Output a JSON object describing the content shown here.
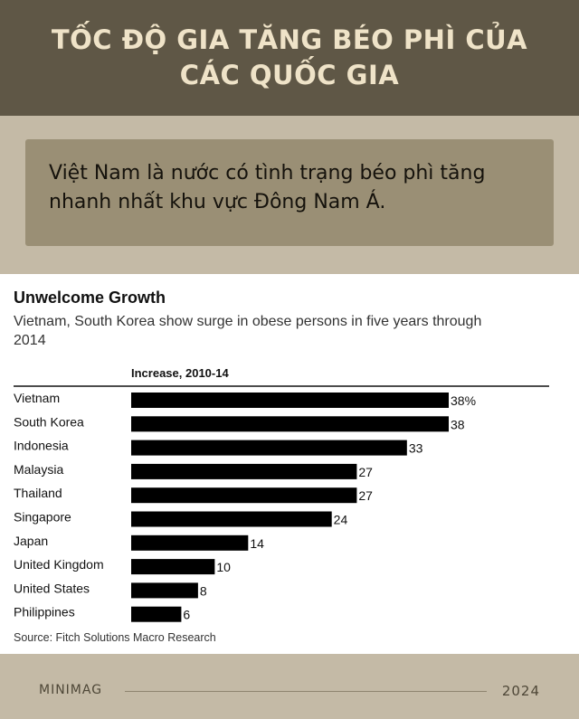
{
  "header": {
    "title": "TỐC ĐỘ GIA TĂNG BÉO PHÌ CỦA CÁC QUỐC GIA"
  },
  "callout": {
    "text": "Việt Nam là nước có tình trạng béo phì tăng nhanh nhất khu vực Đông Nam Á."
  },
  "chart_data": {
    "type": "bar",
    "orientation": "horizontal",
    "title": "Unwelcome Growth",
    "subtitle_lines": [
      "Vietnam, South Korea show surge in obese persons in five years through",
      "2014"
    ],
    "column_header": "Increase, 2010-14",
    "categories": [
      "Vietnam",
      "South Korea",
      "Indonesia",
      "Malaysia",
      "Thailand",
      "Singapore",
      "Japan",
      "United Kingdom",
      "United States",
      "Philippines"
    ],
    "values": [
      38,
      38,
      33,
      27,
      27,
      24,
      14,
      10,
      8,
      6
    ],
    "value_labels": [
      "38%",
      "38",
      "33",
      "27",
      "27",
      "24",
      "14",
      "10",
      "8",
      "6"
    ],
    "xlim": [
      0,
      38
    ],
    "grid": false,
    "bar_color": "#000000",
    "source": "Source: Fitch Solutions Macro Research"
  },
  "footer": {
    "brand": "MINIMAG",
    "year": "2024"
  },
  "colors": {
    "header_bg": "#5f5746",
    "header_text": "#efe3c8",
    "page_bg": "#c4baa6",
    "callout_bg": "#9a8f75"
  }
}
